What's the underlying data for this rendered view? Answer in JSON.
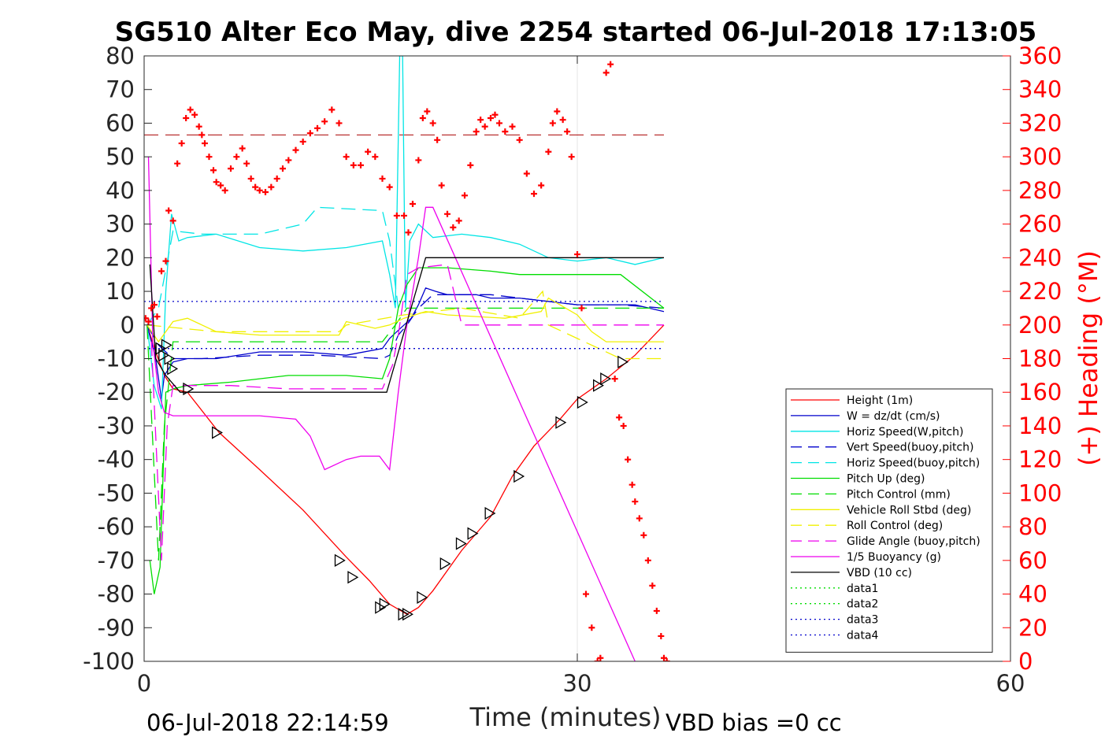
{
  "chart_data": {
    "type": "line",
    "title": "SG510 Alter Eco May, dive 2254 started 06-Jul-2018 17:13:05",
    "xlabel": "Time (minutes)",
    "ylabel_right": "(+) Heading (°M)",
    "xlim": [
      0,
      60
    ],
    "ylim": [
      -100,
      80
    ],
    "ylim_right": [
      0,
      360
    ],
    "xticks": [
      "0",
      "30",
      "60"
    ],
    "yticks": [
      "80",
      "70",
      "60",
      "50",
      "40",
      "30",
      "20",
      "10",
      "0",
      "-10",
      "-20",
      "-30",
      "-40",
      "-50",
      "-60",
      "-70",
      "-80",
      "-90",
      "-100"
    ],
    "yticks_right": [
      "360",
      "340",
      "320",
      "300",
      "280",
      "260",
      "240",
      "220",
      "200",
      "180",
      "160",
      "140",
      "120",
      "100",
      "80",
      "60",
      "40",
      "20",
      "0"
    ],
    "grid": "x-only",
    "legend_position": "bottom-right",
    "footer_left": "06-Jul-2018 22:14:59",
    "footer_right": "VBD bias =0 cc",
    "colors": {
      "red": "#ff0000",
      "blue": "#0000cc",
      "cyan": "#00e5e5",
      "green": "#00dd00",
      "yellow": "#f0f000",
      "magenta": "#ee00ee",
      "black": "#000000",
      "darkred": "#aa0000"
    },
    "series": [
      {
        "name": "Height (1m)",
        "color": "#ff0000",
        "style": "solid",
        "x": [
          0.2,
          0.8,
          1.4,
          2.0,
          3.0,
          5.2,
          8,
          11,
          14,
          15.6,
          17.0,
          18.2,
          19.0,
          20.0,
          22.0,
          24.0,
          25.5,
          27,
          28.8,
          30.0,
          32,
          34,
          36
        ],
        "y": [
          0,
          -8,
          -15,
          -19,
          -20,
          -32,
          -43,
          -55,
          -69,
          -76,
          -83,
          -86,
          -84,
          -79,
          -67,
          -57,
          -45,
          -36,
          -28,
          -22,
          -16,
          -9,
          0
        ]
      },
      {
        "name": "W = dz/dt (cm/s)",
        "color": "#0000cc",
        "style": "solid",
        "x": [
          0.2,
          0.8,
          1.2,
          1.4,
          2.0,
          3.0,
          5,
          8,
          11,
          14,
          16.5,
          17.0,
          17.5,
          18.0,
          18.5,
          19.0,
          19.5,
          20.2,
          21,
          23,
          24,
          26,
          28,
          30,
          32,
          34,
          36
        ],
        "y": [
          0,
          -10,
          -22,
          -15,
          -11,
          -10,
          -10,
          -8,
          -8,
          -9,
          -7,
          -4,
          -2,
          0,
          2,
          6,
          11,
          10,
          9,
          9,
          8,
          8,
          7,
          6,
          6,
          6,
          4
        ]
      },
      {
        "name": "Horiz Speed(W,pitch)",
        "color": "#00e5e5",
        "style": "solid",
        "x": [
          0.2,
          0.7,
          1.2,
          1.5,
          1.9,
          2.4,
          3.0,
          5,
          8,
          11,
          14,
          16.5,
          17.0,
          17.4,
          17.7,
          17.9,
          18.1,
          18.4,
          19.0,
          20,
          22,
          24,
          26,
          28,
          30,
          32,
          34,
          36
        ],
        "y": [
          0,
          -18,
          -25,
          10,
          33,
          25,
          26,
          27,
          23,
          22,
          23,
          25,
          15,
          5,
          80,
          80,
          5,
          25,
          30,
          26,
          27,
          26,
          24,
          20,
          19,
          20,
          18,
          20
        ]
      },
      {
        "name": "Vert Speed(buoy,pitch)",
        "color": "#0000cc",
        "style": "dashed",
        "x": [
          0.2,
          1.0,
          2.0,
          4,
          8,
          12,
          16.5,
          17.0,
          17.6,
          18.2,
          19,
          20,
          22,
          24,
          26,
          28,
          30,
          33,
          36
        ],
        "y": [
          0,
          -6,
          -10,
          -10,
          -9,
          -9,
          -10,
          -9,
          -3,
          0,
          5,
          9,
          9,
          9,
          8,
          7,
          6,
          6,
          5
        ]
      },
      {
        "name": "Horiz Speed(buoy,pitch)",
        "color": "#00e5e5",
        "style": "dashed",
        "x": [
          0.2,
          1.0,
          2.0,
          4,
          8,
          11,
          12,
          16.5,
          17.0,
          17.6
        ],
        "y": [
          0,
          5,
          28,
          27,
          27,
          30,
          35,
          34,
          25,
          5
        ]
      },
      {
        "name": "Pitch Up (deg)",
        "color": "#00dd00",
        "style": "solid",
        "x": [
          0.4,
          0.7,
          1.1,
          1.5,
          2.0,
          3,
          6,
          10,
          14,
          16.5,
          17.0,
          17.6,
          18.2,
          19,
          21,
          24,
          26,
          28,
          30,
          33,
          36
        ],
        "y": [
          -70,
          -80,
          -72,
          -20,
          -19,
          -18,
          -17,
          -15,
          -15,
          -16,
          -10,
          5,
          12,
          17,
          17,
          16,
          15,
          15,
          15,
          15,
          5
        ]
      },
      {
        "name": "Pitch Control (mm)",
        "color": "#00dd00",
        "style": "dashed",
        "x": [
          0.2,
          1.0,
          1.4,
          2.0,
          3,
          8,
          16.5,
          17.4,
          18.2,
          36
        ],
        "y": [
          0,
          -70,
          -30,
          -5,
          -5,
          -5,
          -5,
          0,
          5,
          5
        ]
      },
      {
        "name": "Vehicle Roll Stbd (deg)",
        "color": "#f0f000",
        "style": "solid",
        "x": [
          0.2,
          1.0,
          2.0,
          3,
          5,
          8,
          13.5,
          14,
          16,
          17,
          18,
          19.5,
          21,
          25,
          27.5,
          28,
          30,
          31,
          32,
          36
        ],
        "y": [
          0,
          -5,
          1,
          2,
          -2,
          -3,
          -3,
          1,
          -1,
          0,
          2,
          4,
          3,
          2,
          4,
          8,
          3,
          -2,
          -5,
          -5
        ]
      },
      {
        "name": "Roll Control (deg)",
        "color": "#f0f000",
        "style": "dashed",
        "x": [
          0.2,
          5,
          13.5,
          14,
          18,
          22,
          26,
          27.6,
          28,
          33,
          36
        ],
        "y": [
          0,
          -2,
          -2,
          0,
          3,
          5,
          2,
          10,
          0,
          -10,
          -10
        ]
      },
      {
        "name": "Glide Angle (buoy,pitch)",
        "color": "#ee00ee",
        "style": "dashed",
        "x": [
          0.5,
          1.2,
          1.6,
          2.0,
          3,
          6,
          10,
          14,
          16.5,
          17.2,
          17.6,
          18.2,
          19,
          21,
          22,
          24,
          30,
          36
        ],
        "y": [
          -5,
          -70,
          -30,
          -18,
          -18,
          -18,
          -19,
          -19,
          -19,
          -12,
          -3,
          15,
          17,
          18,
          0,
          0,
          0,
          0
        ]
      },
      {
        "name": "1/5 Buoyancy (g)",
        "color": "#ee00ee",
        "style": "solid",
        "x": [
          0.3,
          0.6,
          1.0,
          1.4,
          2.0,
          4,
          8,
          10.5,
          11.5,
          12.5,
          14,
          15,
          16.3,
          17.0,
          17.6,
          18.2,
          19.0,
          19.5,
          20.0,
          34
        ],
        "y": [
          50,
          -5,
          -20,
          -26,
          -27,
          -27,
          -27,
          -28,
          -33,
          -43,
          -40,
          -39,
          -39,
          -43,
          -20,
          0,
          20,
          35,
          35,
          -100
        ]
      },
      {
        "name": "VBD (10 cc)",
        "color": "#000000",
        "style": "solid",
        "x": [
          0.4,
          0.8,
          1.5,
          2.5,
          16.0,
          16.8,
          19.5,
          36
        ],
        "y": [
          18,
          -10,
          -15,
          -20,
          -20,
          -20,
          20,
          20
        ]
      },
      {
        "name": "data1",
        "color": "#00dd00",
        "style": "dotted",
        "x": [],
        "y": []
      },
      {
        "name": "data2",
        "color": "#00dd00",
        "style": "dotted",
        "x": [],
        "y": []
      },
      {
        "name": "data3",
        "color": "#0000cc",
        "style": "dotted",
        "x": [
          0,
          36
        ],
        "y": [
          7,
          7
        ]
      },
      {
        "name": "data4",
        "color": "#0000cc",
        "style": "dotted",
        "x": [
          0,
          36
        ],
        "y": [
          -7,
          -7
        ]
      }
    ],
    "reference_line": {
      "color": "#aa0000",
      "style": "dashed",
      "axis": "right",
      "x": [
        0,
        36
      ],
      "y": [
        313,
        313
      ]
    },
    "triangle_markers": {
      "x": [
        1.1,
        1.3,
        1.5,
        1.7,
        1.9,
        3.0,
        5.0,
        13.5,
        14.4,
        16.3,
        16.6,
        17.9,
        18.2,
        19.2,
        20.8,
        21.9,
        22.7,
        23.9,
        25.9,
        28.8,
        30.3,
        31.4,
        31.9,
        33.1
      ],
      "y": [
        -7,
        -9,
        -6,
        -10,
        -13,
        -19,
        -32,
        -70,
        -75,
        -84,
        -83,
        -86,
        -86,
        -81,
        -71,
        -65,
        -62,
        -56,
        -45,
        -29,
        -23,
        -18,
        -16,
        -11
      ]
    },
    "heading": {
      "name": "Heading",
      "marker": "+",
      "color": "#ff0000",
      "axis": "right",
      "x": [
        0.1,
        0.3,
        0.5,
        0.7,
        0.9,
        1.2,
        1.5,
        1.7,
        2.0,
        2.3,
        2.6,
        2.9,
        3.2,
        3.5,
        3.8,
        4.0,
        4.2,
        4.5,
        4.8,
        5.0,
        5.3,
        5.6,
        6.0,
        6.4,
        6.8,
        7.1,
        7.4,
        7.7,
        8.0,
        8.4,
        8.8,
        9.2,
        9.6,
        10.0,
        10.5,
        11,
        11.5,
        12,
        12.5,
        13,
        13.5,
        14,
        14.5,
        15,
        15.5,
        16,
        16.5,
        17,
        17.5,
        18,
        18.3,
        18.6,
        19,
        19.3,
        19.6,
        20,
        20.3,
        20.6,
        21,
        21.4,
        21.8,
        22.2,
        22.6,
        23,
        23.3,
        23.6,
        24,
        24.3,
        24.6,
        25,
        25.5,
        26,
        26.5,
        27,
        27.5,
        28,
        28.3,
        28.6,
        29,
        29.3,
        29.6,
        30,
        30.3,
        30.6,
        31,
        31.4,
        31.6,
        32,
        32.3,
        32.6,
        32.9,
        33.2,
        33.5,
        33.8,
        34.0,
        34.3,
        34.6,
        34.9,
        35.2,
        35.5,
        35.8,
        36.0,
        36.2
      ],
      "y": [
        204,
        202,
        210,
        212,
        205,
        232,
        238,
        268,
        262,
        296,
        308,
        323,
        328,
        325,
        318,
        313,
        308,
        300,
        292,
        285,
        283,
        280,
        293,
        300,
        305,
        296,
        287,
        282,
        280,
        279,
        282,
        287,
        293,
        298,
        304,
        309,
        314,
        317,
        321,
        328,
        320,
        300,
        295,
        295,
        303,
        300,
        287,
        282,
        265,
        265,
        255,
        272,
        298,
        323,
        327,
        320,
        310,
        283,
        266,
        258,
        262,
        277,
        295,
        315,
        322,
        318,
        323,
        325,
        320,
        315,
        318,
        310,
        290,
        278,
        283,
        303,
        320,
        327,
        322,
        315,
        300,
        242,
        210,
        40,
        20,
        0,
        2,
        350,
        355,
        168,
        145,
        140,
        120,
        105,
        95,
        85,
        75,
        60,
        45,
        30,
        15,
        2,
        0
      ]
    }
  }
}
